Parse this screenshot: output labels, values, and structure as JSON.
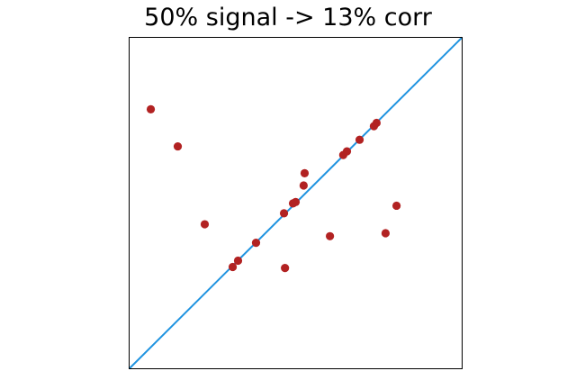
{
  "chart_data": {
    "type": "scatter",
    "title": "50% signal -> 13% corr",
    "xlabel": "",
    "ylabel": "",
    "xlim": [
      0,
      1
    ],
    "ylim": [
      0,
      1
    ],
    "grid": false,
    "ticks": false,
    "reference_line": {
      "kind": "identity",
      "from": [
        0,
        0
      ],
      "to": [
        1,
        1
      ],
      "color": "#1f93e0"
    },
    "point_color": "#b22222",
    "points": [
      {
        "x": 0.065,
        "y": 0.783
      },
      {
        "x": 0.146,
        "y": 0.671
      },
      {
        "x": 0.227,
        "y": 0.436
      },
      {
        "x": 0.311,
        "y": 0.307
      },
      {
        "x": 0.327,
        "y": 0.326
      },
      {
        "x": 0.381,
        "y": 0.38
      },
      {
        "x": 0.468,
        "y": 0.304
      },
      {
        "x": 0.465,
        "y": 0.469
      },
      {
        "x": 0.492,
        "y": 0.499
      },
      {
        "x": 0.5,
        "y": 0.503
      },
      {
        "x": 0.524,
        "y": 0.553
      },
      {
        "x": 0.527,
        "y": 0.59
      },
      {
        "x": 0.603,
        "y": 0.4
      },
      {
        "x": 0.643,
        "y": 0.645
      },
      {
        "x": 0.654,
        "y": 0.656
      },
      {
        "x": 0.692,
        "y": 0.691
      },
      {
        "x": 0.735,
        "y": 0.732
      },
      {
        "x": 0.743,
        "y": 0.742
      },
      {
        "x": 0.77,
        "y": 0.409
      },
      {
        "x": 0.803,
        "y": 0.492
      }
    ]
  }
}
